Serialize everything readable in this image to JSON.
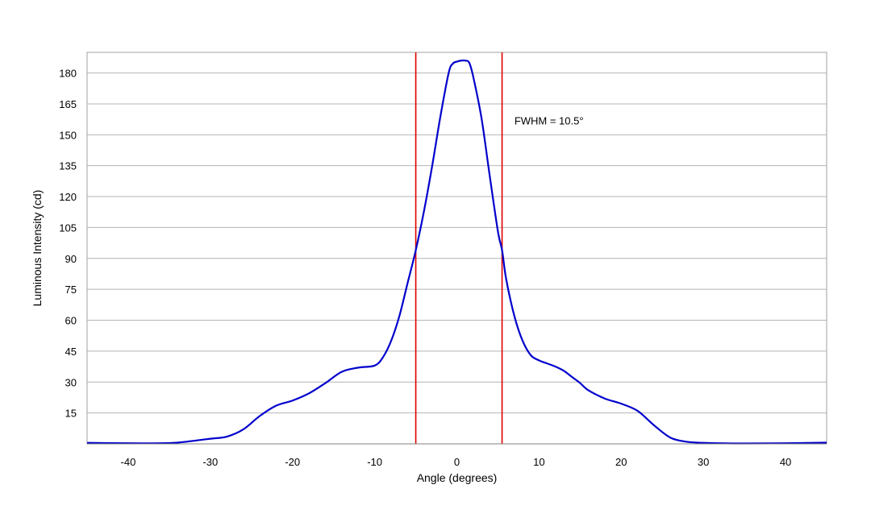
{
  "chart_data": {
    "type": "line",
    "title": "",
    "xlabel": "Angle (degrees)",
    "ylabel": "Luminous Intensity (cd)",
    "xlim": [
      -45,
      45
    ],
    "ylim": [
      0,
      190
    ],
    "x_ticks": [
      -40,
      -30,
      -20,
      -10,
      0,
      10,
      20,
      30,
      40
    ],
    "x_tick_labels": [
      "-40",
      "-30",
      "-20",
      "-10",
      "0",
      "10",
      "20",
      "30",
      "40"
    ],
    "y_ticks": [
      15,
      30,
      45,
      60,
      75,
      90,
      105,
      120,
      135,
      150,
      165,
      180
    ],
    "y_tick_labels": [
      "15",
      "30",
      "45",
      "60",
      "75",
      "90",
      "105",
      "120",
      "135",
      "150",
      "165",
      "180"
    ],
    "grid": "horizontal",
    "legend": "none",
    "series": [
      {
        "color": "#0000cc",
        "x": [
          -45,
          -40,
          -36,
          -34,
          -32,
          -30,
          -28,
          -26,
          -24,
          -22,
          -20,
          -18,
          -16,
          -14,
          -12,
          -10,
          -9,
          -8,
          -7,
          -6,
          -5,
          -4,
          -3,
          -2,
          -1,
          -0.5,
          0,
          0.5,
          1,
          1.5,
          2,
          3,
          4,
          5,
          5.5,
          6,
          7,
          8,
          9,
          10,
          11,
          12,
          13,
          14,
          15,
          16,
          18,
          20,
          22,
          24,
          26,
          28,
          30,
          32,
          35,
          40,
          45
        ],
        "y": [
          0.5,
          0.3,
          0.3,
          0.6,
          1.5,
          2.5,
          3.5,
          7,
          13.5,
          18.5,
          21,
          24.5,
          29.5,
          35,
          37,
          38,
          42,
          50,
          62,
          78,
          94,
          113,
          135,
          159,
          180,
          184.5,
          185.5,
          186,
          186,
          185,
          178,
          158,
          130,
          103,
          94,
          80,
          62,
          50,
          43,
          40.5,
          39,
          37.5,
          35.5,
          32.5,
          29.5,
          26,
          22,
          19.5,
          16,
          9,
          3,
          1,
          0.5,
          0.3,
          0.2,
          0.3,
          0.6
        ]
      }
    ],
    "vlines": [
      {
        "x": -5,
        "color": "#dd0000"
      },
      {
        "x": 5.5,
        "color": "#dd0000"
      }
    ],
    "annotations": [
      {
        "text": "FWHM = 10.5°",
        "x": 7,
        "y": 155
      }
    ]
  }
}
